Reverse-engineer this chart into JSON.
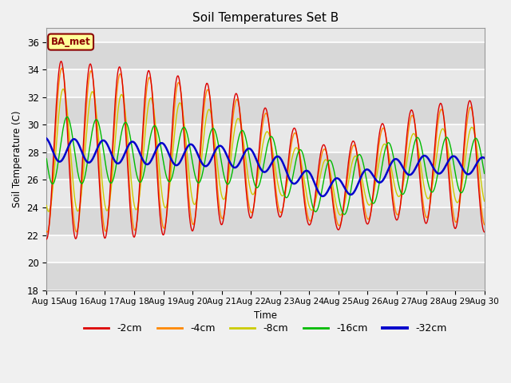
{
  "title": "Soil Temperatures Set B",
  "xlabel": "Time",
  "ylabel": "Soil Temperature (C)",
  "ylim": [
    18,
    37
  ],
  "yticks": [
    18,
    20,
    22,
    24,
    26,
    28,
    30,
    32,
    34,
    36
  ],
  "xtick_labels": [
    "Aug 15",
    "Aug 16",
    "Aug 17",
    "Aug 18",
    "Aug 19",
    "Aug 20",
    "Aug 21",
    "Aug 22",
    "Aug 23",
    "Aug 24",
    "Aug 25",
    "Aug 26",
    "Aug 27",
    "Aug 28",
    "Aug 29",
    "Aug 30"
  ],
  "legend_labels": [
    "-2cm",
    "-4cm",
    "-8cm",
    "-16cm",
    "-32cm"
  ],
  "line_colors": [
    "#dd0000",
    "#ff8800",
    "#cccc00",
    "#00bb00",
    "#0000cc"
  ],
  "annotation_text": "BA_met",
  "background_color": "#e8e8e8",
  "plot_bg_color": "#d8d8d8",
  "grid_color": "#ffffff",
  "title_fontsize": 11
}
